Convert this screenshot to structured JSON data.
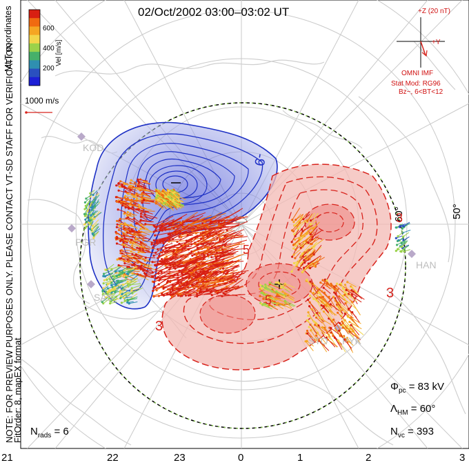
{
  "title": "02/Oct/2002 03:00–03:02 UT",
  "coords_label": "MLT coordinates",
  "note_line1": "NOTE: FOR PREVIEW PURPOSES ONLY. PLEASE CONTACT VT-SD STAFF FOR VERIFICATION.",
  "note_line2": "FitOrder: 8, mapEX format",
  "colorbar": {
    "label": "Vel [m/s]",
    "ticks": [
      "600",
      "400",
      "200"
    ],
    "colors": [
      "#d81f12",
      "#f06a10",
      "#f5a623",
      "#f2d64b",
      "#9ad24a",
      "#46b06a",
      "#2f8fb0",
      "#2a4fbf",
      "#1c1fd6"
    ]
  },
  "vector_scale": "1000 m/s",
  "imf": {
    "z_label": "+Z (20 nT)",
    "y_label": "+Y",
    "source": "OMNI IMF",
    "model": "Stat Mod: RG96",
    "bin": "Bz−, 6<BT<12"
  },
  "stats": {
    "phi_pc": "Φpc = 83 kV",
    "phi_sym": "Φ",
    "phi_sub": "pc",
    "phi_val": "= 83 kV",
    "lambda_sym": "Λ",
    "lambda_sub": "HM",
    "lambda_val": "= 60°",
    "nvc_sym": "N",
    "nvc_sub": "vc",
    "nvc_val": "= 393",
    "nrads_sym": "N",
    "nrads_sub": "rads",
    "nrads_val": "= 6"
  },
  "lat_labels": [
    "60°",
    "50°"
  ],
  "contour_labels": [
    "-9",
    "3",
    "3",
    "3",
    "5",
    "5",
    "5"
  ],
  "stations": [
    "KOD",
    "PGR",
    "SAS",
    "HAN",
    "STO",
    "PYK"
  ],
  "mlt_ticks": [
    "21",
    "22",
    "23",
    "0",
    "1",
    "2",
    "3"
  ],
  "colors": {
    "negative": "#2233c8",
    "positive": "#d8231c",
    "boundary": "#000000",
    "hmb": "#8ad24a"
  }
}
